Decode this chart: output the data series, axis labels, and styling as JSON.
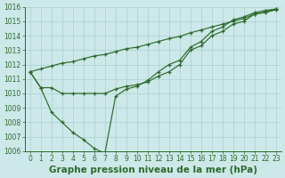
{
  "x": [
    0,
    1,
    2,
    3,
    4,
    5,
    6,
    7,
    8,
    9,
    10,
    11,
    12,
    13,
    14,
    15,
    16,
    17,
    18,
    19,
    20,
    21,
    22,
    23
  ],
  "series1": [
    1011.5,
    1010.4,
    1010.4,
    1010.0,
    1010.0,
    1010.0,
    1010.0,
    1010.0,
    1010.3,
    1010.5,
    1010.6,
    1010.8,
    1011.2,
    1011.5,
    1012.0,
    1013.0,
    1013.3,
    1014.0,
    1014.3,
    1014.8,
    1015.0,
    1015.5,
    1015.6,
    1015.8
  ],
  "series2": [
    1011.5,
    1010.4,
    1008.7,
    1008.0,
    1007.3,
    1006.8,
    1006.2,
    1005.85,
    1009.8,
    1010.3,
    1010.5,
    1010.9,
    1011.5,
    1012.0,
    1012.3,
    1013.2,
    1013.6,
    1014.3,
    1014.6,
    1015.1,
    1015.3,
    1015.6,
    1015.75,
    1015.85
  ],
  "series3": [
    1011.5,
    1011.7,
    1011.9,
    1012.1,
    1012.2,
    1012.4,
    1012.6,
    1012.7,
    1012.9,
    1013.1,
    1013.2,
    1013.4,
    1013.6,
    1013.8,
    1013.95,
    1014.2,
    1014.4,
    1014.6,
    1014.8,
    1015.0,
    1015.2,
    1015.5,
    1015.65,
    1015.85
  ],
  "ylim": [
    1006,
    1016
  ],
  "xlim": [
    -0.5,
    23.5
  ],
  "yticks": [
    1006,
    1007,
    1008,
    1009,
    1010,
    1011,
    1012,
    1013,
    1014,
    1015,
    1016
  ],
  "xticks": [
    0,
    1,
    2,
    3,
    4,
    5,
    6,
    7,
    8,
    9,
    10,
    11,
    12,
    13,
    14,
    15,
    16,
    17,
    18,
    19,
    20,
    21,
    22,
    23
  ],
  "xlabel": "Graphe pression niveau de la mer (hPa)",
  "line_color": "#2d6a2d",
  "bg_color": "#cce8e8",
  "grid_color": "#aad0d0",
  "marker": "+",
  "xlabel_fontsize": 7.5,
  "tick_fontsize": 5.5,
  "linewidth": 0.85,
  "markersize": 3.0,
  "markeredgewidth": 0.9
}
